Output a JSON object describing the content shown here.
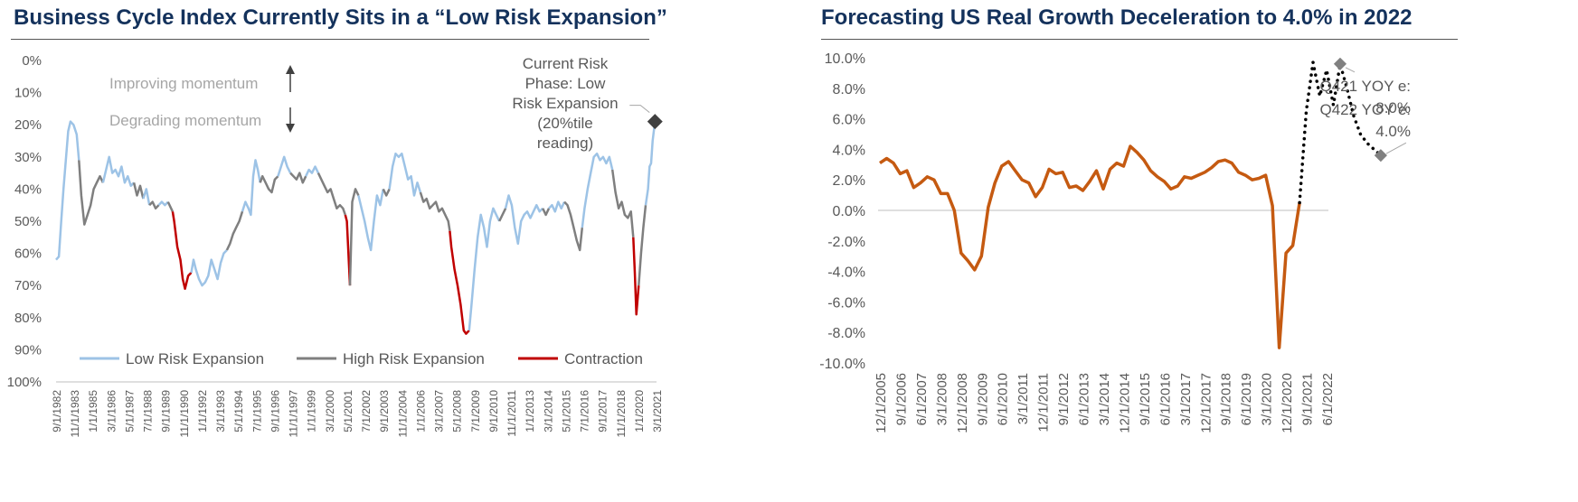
{
  "chart_data": [
    {
      "type": "line",
      "title": "Business Cycle Index Currently Sits in a “Low Risk Expansion”",
      "y_ticks": [
        "0%",
        "10%",
        "20%",
        "30%",
        "40%",
        "50%",
        "60%",
        "70%",
        "80%",
        "90%",
        "100%"
      ],
      "ylim": [
        0,
        100
      ],
      "y_inverted": true,
      "x_ticks": [
        "9/1/1982",
        "11/1/1983",
        "1/1/1985",
        "3/1/1986",
        "5/1/1987",
        "7/1/1988",
        "9/1/1989",
        "11/1/1990",
        "1/1/1992",
        "3/1/1993",
        "5/1/1994",
        "7/1/1995",
        "9/1/1996",
        "11/1/1997",
        "1/1/1999",
        "3/1/2000",
        "5/1/2001",
        "7/1/2002",
        "9/1/2003",
        "11/1/2004",
        "1/1/2006",
        "3/1/2007",
        "5/1/2008",
        "7/1/2009",
        "9/1/2010",
        "11/1/2011",
        "1/1/2013",
        "3/1/2014",
        "5/1/2015",
        "7/1/2016",
        "9/1/2017",
        "11/1/2018",
        "1/1/2020",
        "3/1/2021"
      ],
      "legend_position": "bottom",
      "phase_colors": {
        "L": "#9dc3e6",
        "H": "#7f7f7f",
        "C": "#c00000"
      },
      "series": [
        {
          "name": "Low Risk Expansion",
          "color": "#9dc3e6"
        },
        {
          "name": "High Risk Expansion",
          "color": "#7f7f7f"
        },
        {
          "name": "Contraction",
          "color": "#c00000"
        }
      ],
      "points": [
        [
          1982.67,
          62,
          "L"
        ],
        [
          1982.85,
          61,
          "L"
        ],
        [
          1983.0,
          50,
          "L"
        ],
        [
          1983.15,
          40,
          "L"
        ],
        [
          1983.3,
          31,
          "L"
        ],
        [
          1983.45,
          22,
          "L"
        ],
        [
          1983.6,
          19,
          "L"
        ],
        [
          1983.8,
          20,
          "L"
        ],
        [
          1984.0,
          23,
          "L"
        ],
        [
          1984.15,
          31,
          "L"
        ],
        [
          1984.3,
          42,
          "H"
        ],
        [
          1984.5,
          51,
          "H"
        ],
        [
          1984.7,
          48,
          "H"
        ],
        [
          1984.9,
          45,
          "H"
        ],
        [
          1985.1,
          40,
          "H"
        ],
        [
          1985.3,
          38,
          "H"
        ],
        [
          1985.5,
          36,
          "H"
        ],
        [
          1985.7,
          38,
          "H"
        ],
        [
          1985.9,
          34,
          "L"
        ],
        [
          1986.1,
          30,
          "L"
        ],
        [
          1986.3,
          35,
          "L"
        ],
        [
          1986.5,
          34,
          "L"
        ],
        [
          1986.7,
          36,
          "L"
        ],
        [
          1986.9,
          33,
          "L"
        ],
        [
          1987.1,
          38,
          "L"
        ],
        [
          1987.3,
          36,
          "L"
        ],
        [
          1987.5,
          39,
          "L"
        ],
        [
          1987.7,
          38,
          "L"
        ],
        [
          1987.9,
          42,
          "H"
        ],
        [
          1988.1,
          39,
          "H"
        ],
        [
          1988.3,
          43,
          "H"
        ],
        [
          1988.5,
          40,
          "L"
        ],
        [
          1988.7,
          45,
          "L"
        ],
        [
          1988.9,
          44,
          "H"
        ],
        [
          1989.1,
          46,
          "H"
        ],
        [
          1989.3,
          45,
          "H"
        ],
        [
          1989.5,
          44,
          "L"
        ],
        [
          1989.7,
          45,
          "L"
        ],
        [
          1989.9,
          44,
          "L"
        ],
        [
          1990.1,
          46,
          "H"
        ],
        [
          1990.2,
          47,
          "H"
        ],
        [
          1990.3,
          50,
          "C"
        ],
        [
          1990.5,
          58,
          "C"
        ],
        [
          1990.7,
          62,
          "C"
        ],
        [
          1990.85,
          68,
          "C"
        ],
        [
          1991.0,
          71,
          "C"
        ],
        [
          1991.2,
          67,
          "C"
        ],
        [
          1991.4,
          66,
          "C"
        ],
        [
          1991.55,
          62,
          "L"
        ],
        [
          1991.7,
          65,
          "L"
        ],
        [
          1991.9,
          68,
          "L"
        ],
        [
          1992.1,
          70,
          "L"
        ],
        [
          1992.3,
          69,
          "L"
        ],
        [
          1992.5,
          67,
          "L"
        ],
        [
          1992.7,
          62,
          "L"
        ],
        [
          1992.9,
          65,
          "L"
        ],
        [
          1993.1,
          68,
          "L"
        ],
        [
          1993.3,
          63,
          "L"
        ],
        [
          1993.5,
          60,
          "L"
        ],
        [
          1993.7,
          59,
          "L"
        ],
        [
          1993.9,
          57,
          "H"
        ],
        [
          1994.1,
          54,
          "H"
        ],
        [
          1994.3,
          52,
          "H"
        ],
        [
          1994.5,
          50,
          "H"
        ],
        [
          1994.7,
          47,
          "H"
        ],
        [
          1994.9,
          44,
          "L"
        ],
        [
          1995.1,
          46,
          "L"
        ],
        [
          1995.25,
          48,
          "L"
        ],
        [
          1995.4,
          36,
          "L"
        ],
        [
          1995.55,
          31,
          "L"
        ],
        [
          1995.7,
          34,
          "L"
        ],
        [
          1995.85,
          38,
          "L"
        ],
        [
          1996.0,
          36,
          "H"
        ],
        [
          1996.2,
          38,
          "H"
        ],
        [
          1996.4,
          40,
          "H"
        ],
        [
          1996.6,
          41,
          "H"
        ],
        [
          1996.8,
          37,
          "H"
        ],
        [
          1997.0,
          36,
          "H"
        ],
        [
          1997.2,
          33,
          "L"
        ],
        [
          1997.4,
          30,
          "L"
        ],
        [
          1997.6,
          33,
          "L"
        ],
        [
          1997.8,
          35,
          "L"
        ],
        [
          1998.0,
          36,
          "H"
        ],
        [
          1998.2,
          37,
          "H"
        ],
        [
          1998.4,
          35,
          "H"
        ],
        [
          1998.6,
          38,
          "H"
        ],
        [
          1998.8,
          36,
          "H"
        ],
        [
          1999.0,
          34,
          "L"
        ],
        [
          1999.2,
          35,
          "L"
        ],
        [
          1999.4,
          33,
          "L"
        ],
        [
          1999.6,
          35,
          "L"
        ],
        [
          1999.8,
          37,
          "H"
        ],
        [
          2000.0,
          39,
          "H"
        ],
        [
          2000.2,
          41,
          "H"
        ],
        [
          2000.4,
          40,
          "H"
        ],
        [
          2000.6,
          43,
          "H"
        ],
        [
          2000.8,
          46,
          "H"
        ],
        [
          2001.0,
          45,
          "H"
        ],
        [
          2001.2,
          46,
          "H"
        ],
        [
          2001.35,
          48,
          "H"
        ],
        [
          2001.45,
          50,
          "C"
        ],
        [
          2001.55,
          60,
          "C"
        ],
        [
          2001.65,
          70,
          "C"
        ],
        [
          2001.8,
          44,
          "H"
        ],
        [
          2002.0,
          40,
          "H"
        ],
        [
          2002.2,
          42,
          "H"
        ],
        [
          2002.4,
          46,
          "L"
        ],
        [
          2002.6,
          50,
          "L"
        ],
        [
          2002.8,
          55,
          "L"
        ],
        [
          2003.0,
          59,
          "L"
        ],
        [
          2003.2,
          50,
          "L"
        ],
        [
          2003.4,
          42,
          "L"
        ],
        [
          2003.6,
          45,
          "L"
        ],
        [
          2003.8,
          40,
          "L"
        ],
        [
          2004.0,
          42,
          "H"
        ],
        [
          2004.2,
          40,
          "H"
        ],
        [
          2004.4,
          33,
          "L"
        ],
        [
          2004.6,
          29,
          "L"
        ],
        [
          2004.8,
          30,
          "L"
        ],
        [
          2005.0,
          29,
          "L"
        ],
        [
          2005.2,
          33,
          "L"
        ],
        [
          2005.4,
          37,
          "L"
        ],
        [
          2005.6,
          36,
          "L"
        ],
        [
          2005.8,
          42,
          "L"
        ],
        [
          2006.0,
          38,
          "L"
        ],
        [
          2006.2,
          41,
          "L"
        ],
        [
          2006.4,
          44,
          "H"
        ],
        [
          2006.6,
          43,
          "H"
        ],
        [
          2006.8,
          46,
          "H"
        ],
        [
          2007.0,
          45,
          "H"
        ],
        [
          2007.2,
          44,
          "H"
        ],
        [
          2007.4,
          47,
          "H"
        ],
        [
          2007.6,
          46,
          "H"
        ],
        [
          2007.8,
          48,
          "H"
        ],
        [
          2008.0,
          50,
          "H"
        ],
        [
          2008.1,
          53,
          "H"
        ],
        [
          2008.2,
          58,
          "C"
        ],
        [
          2008.4,
          65,
          "C"
        ],
        [
          2008.6,
          70,
          "C"
        ],
        [
          2008.8,
          76,
          "C"
        ],
        [
          2009.0,
          84,
          "C"
        ],
        [
          2009.15,
          85,
          "C"
        ],
        [
          2009.35,
          84,
          "C"
        ],
        [
          2009.5,
          76,
          "L"
        ],
        [
          2009.7,
          65,
          "L"
        ],
        [
          2009.9,
          55,
          "L"
        ],
        [
          2010.1,
          48,
          "L"
        ],
        [
          2010.3,
          52,
          "L"
        ],
        [
          2010.5,
          58,
          "L"
        ],
        [
          2010.7,
          50,
          "L"
        ],
        [
          2010.9,
          46,
          "L"
        ],
        [
          2011.1,
          48,
          "L"
        ],
        [
          2011.3,
          50,
          "L"
        ],
        [
          2011.5,
          48,
          "H"
        ],
        [
          2011.7,
          46,
          "H"
        ],
        [
          2011.9,
          42,
          "L"
        ],
        [
          2012.1,
          45,
          "L"
        ],
        [
          2012.3,
          52,
          "L"
        ],
        [
          2012.5,
          57,
          "L"
        ],
        [
          2012.7,
          50,
          "L"
        ],
        [
          2012.9,
          48,
          "L"
        ],
        [
          2013.1,
          47,
          "L"
        ],
        [
          2013.3,
          49,
          "L"
        ],
        [
          2013.5,
          47,
          "L"
        ],
        [
          2013.7,
          45,
          "L"
        ],
        [
          2013.9,
          47,
          "L"
        ],
        [
          2014.1,
          46,
          "L"
        ],
        [
          2014.3,
          48,
          "H"
        ],
        [
          2014.5,
          46,
          "H"
        ],
        [
          2014.7,
          45,
          "L"
        ],
        [
          2014.9,
          47,
          "L"
        ],
        [
          2015.1,
          44,
          "L"
        ],
        [
          2015.3,
          46,
          "L"
        ],
        [
          2015.5,
          44,
          "L"
        ],
        [
          2015.7,
          45,
          "H"
        ],
        [
          2015.9,
          48,
          "H"
        ],
        [
          2016.1,
          52,
          "H"
        ],
        [
          2016.3,
          56,
          "H"
        ],
        [
          2016.5,
          59,
          "H"
        ],
        [
          2016.65,
          52,
          "H"
        ],
        [
          2016.8,
          46,
          "L"
        ],
        [
          2017.0,
          40,
          "L"
        ],
        [
          2017.2,
          35,
          "L"
        ],
        [
          2017.4,
          30,
          "L"
        ],
        [
          2017.6,
          29,
          "L"
        ],
        [
          2017.8,
          31,
          "L"
        ],
        [
          2018.0,
          30,
          "L"
        ],
        [
          2018.2,
          32,
          "L"
        ],
        [
          2018.4,
          30,
          "L"
        ],
        [
          2018.6,
          34,
          "L"
        ],
        [
          2018.8,
          41,
          "H"
        ],
        [
          2019.0,
          46,
          "H"
        ],
        [
          2019.2,
          44,
          "H"
        ],
        [
          2019.4,
          48,
          "H"
        ],
        [
          2019.6,
          49,
          "H"
        ],
        [
          2019.8,
          47,
          "H"
        ],
        [
          2019.95,
          55,
          "H"
        ],
        [
          2020.05,
          66,
          "C"
        ],
        [
          2020.15,
          79,
          "C"
        ],
        [
          2020.3,
          70,
          "C"
        ],
        [
          2020.45,
          60,
          "H"
        ],
        [
          2020.6,
          52,
          "H"
        ],
        [
          2020.75,
          45,
          "H"
        ],
        [
          2020.9,
          40,
          "L"
        ],
        [
          2021.0,
          33,
          "L"
        ],
        [
          2021.1,
          32,
          "L"
        ],
        [
          2021.2,
          25,
          "L"
        ],
        [
          2021.35,
          19,
          "L"
        ]
      ],
      "current_point": {
        "x": 2021.35,
        "y": 19
      },
      "annotations": {
        "current": [
          "Current Risk",
          "Phase: Low",
          "Risk Expansion",
          "(20%tile",
          "reading)"
        ],
        "improving": "Improving momentum",
        "degrading": "Degrading momentum"
      }
    },
    {
      "type": "line",
      "title": "Forecasting US Real Growth Deceleration to 4.0% in 2022",
      "y_ticks": [
        "10.0%",
        "8.0%",
        "6.0%",
        "4.0%",
        "2.0%",
        "0.0%",
        "-2.0%",
        "-4.0%",
        "-6.0%",
        "-8.0%",
        "-10.0%"
      ],
      "ylim": [
        -10,
        10
      ],
      "x_ticks": [
        "12/1/2005",
        "9/1/2006",
        "6/1/2007",
        "3/1/2008",
        "12/1/2008",
        "9/1/2009",
        "6/1/2010",
        "3/1/2011",
        "12/1/2011",
        "9/1/2012",
        "6/1/2013",
        "3/1/2014",
        "12/1/2014",
        "9/1/2015",
        "6/1/2016",
        "3/1/2017",
        "12/1/2017",
        "9/1/2018",
        "6/1/2019",
        "3/1/2020",
        "12/1/2020",
        "9/1/2021",
        "6/1/2022"
      ],
      "actual_color": "#c55a11",
      "forecast_color": "#000000",
      "actual": [
        3.1,
        3.4,
        3.1,
        2.4,
        2.6,
        1.5,
        1.8,
        2.2,
        2.0,
        1.1,
        1.1,
        0.0,
        -2.8,
        -3.3,
        -3.9,
        -3.0,
        0.2,
        1.8,
        2.9,
        3.2,
        2.6,
        2.0,
        1.8,
        0.9,
        1.5,
        2.7,
        2.4,
        2.5,
        1.5,
        1.6,
        1.3,
        1.9,
        2.6,
        1.4,
        2.7,
        3.1,
        2.9,
        4.2,
        3.8,
        3.3,
        2.6,
        2.2,
        1.9,
        1.4,
        1.6,
        2.2,
        2.1,
        2.3,
        2.5,
        2.8,
        3.2,
        3.3,
        3.1,
        2.5,
        2.3,
        2.0,
        2.1,
        2.3,
        0.3,
        -9.0,
        -2.8,
        -2.3,
        0.5
      ],
      "forecast": [
        0.5,
        6.5,
        9.7,
        7.5,
        9.2,
        6.9,
        9.6,
        8.0,
        6.2,
        5.0,
        4.4,
        4.0,
        3.6
      ],
      "labels": {
        "q421": [
          "Q421 YOY e:",
          "8.0%"
        ],
        "q422": [
          "Q422 YOY e:",
          "4.0%"
        ]
      }
    }
  ]
}
